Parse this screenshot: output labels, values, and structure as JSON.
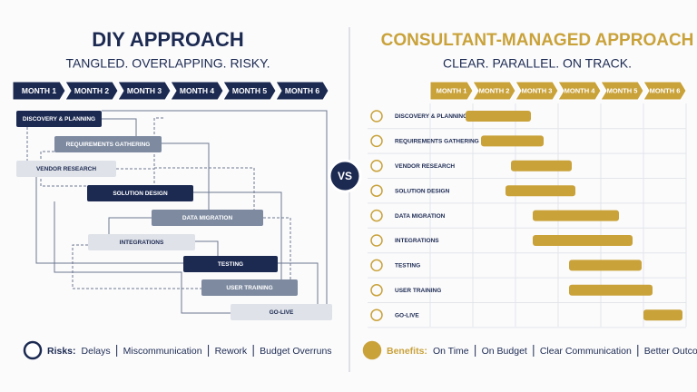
{
  "left": {
    "title": "DIY APPROACH",
    "subtitle": "TANGLED. OVERLAPPING. RISKY.",
    "months": [
      "MONTH 1",
      "MONTH 2",
      "MONTH 3",
      "MONTH 4",
      "MONTH 5",
      "MONTH 6"
    ],
    "tasks": [
      "DISCOVERY & PLANNING",
      "REQUIREMENTS GATHERING",
      "VENDOR RESEARCH",
      "SOLUTION DESIGN",
      "DATA MIGRATION",
      "INTEGRATIONS",
      "TESTING",
      "USER TRAINING",
      "GO-LIVE"
    ],
    "footer": {
      "label": "Risks:",
      "items": [
        "Delays",
        "Miscommunication",
        "Rework",
        "Budget Overruns"
      ]
    }
  },
  "vs": "VS",
  "right": {
    "title": "CONSULTANT-MANAGED APPROACH",
    "subtitle": "CLEAR. PARALLEL. ON TRACK.",
    "months": [
      "MONTH 1",
      "MONTH 2",
      "MONTH 3",
      "MONTH 4",
      "MONTH 5",
      "MONTH 6"
    ],
    "tasks": [
      "DISCOVERY & PLANNING",
      "REQUIREMENTS GATHERING",
      "VENDOR RESEARCH",
      "SOLUTION DESIGN",
      "DATA MIGRATION",
      "INTEGRATIONS",
      "TESTING",
      "USER TRAINING",
      "GO-LIVE"
    ],
    "footer": {
      "label": "Benefits:",
      "items": [
        "On Time",
        "On Budget",
        "Clear Communication",
        "Better Outcomes"
      ]
    }
  }
}
